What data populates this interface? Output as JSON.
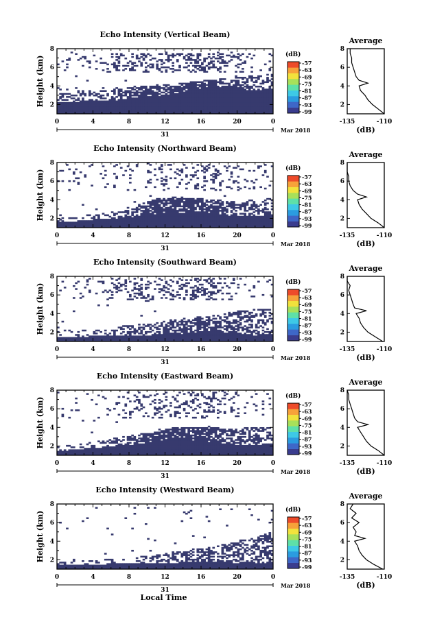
{
  "colors": {
    "echo": "#373a6e",
    "frame": "#000000"
  },
  "colorbar_colors": [
    "#3a3c8e",
    "#3e67c8",
    "#2b9ce0",
    "#3ec9e6",
    "#5ee0a8",
    "#a8e05a",
    "#f2e23c",
    "#f7a23a",
    "#ee4b2a"
  ],
  "colorbar": {
    "unit": "(dB)",
    "ticks": [
      "-57",
      "-63",
      "-69",
      "-75",
      "-81",
      "-87",
      "-93",
      "-99"
    ]
  },
  "time_ticks": [
    "0",
    "4",
    "8",
    "12",
    "16",
    "20",
    "0"
  ],
  "height_ticks": [
    "2",
    "4",
    "6",
    "8"
  ],
  "date_day": "31",
  "date_label": "Mar 2018",
  "xlabel_main": "Local Time",
  "avg_title": "Average",
  "avg_xlabel": "(dB)",
  "avg_x_ticks": [
    "-135",
    "-110"
  ],
  "chart_data": [
    {
      "type": "heatmap",
      "title": "Echo Intensity (Vertical Beam)",
      "xlabel": "",
      "ylabel": "Height (km)",
      "xlim": [
        0,
        24
      ],
      "ylim": [
        1,
        8
      ],
      "z_range": [
        -99,
        -57
      ],
      "solid_top": [
        2.3,
        2.3,
        2.4,
        2.5,
        2.8,
        2.9,
        3.2,
        3.7,
        4.0,
        3.8,
        3.5,
        3.8
      ],
      "broken_top": [
        3.8,
        3.6,
        3.4,
        3.7,
        3.9,
        4.1,
        4.2,
        4.5,
        4.7,
        4.9,
        5.1,
        5.3
      ],
      "fill_density": [
        0.45,
        0.4,
        0.45,
        0.55,
        0.65,
        0.7,
        0.7,
        0.75,
        0.7,
        0.6,
        0.45,
        0.35
      ],
      "upper_band": [
        5.5,
        7.6
      ],
      "upper_density": [
        0.08,
        0.1,
        0.12,
        0.2,
        0.3,
        0.35,
        0.3,
        0.45,
        0.4,
        0.2,
        0.1,
        0.1
      ],
      "avg_profile": {
        "type": "line",
        "xlim": [
          -135,
          -110
        ],
        "ylim": [
          1,
          8
        ],
        "height": [
          1.0,
          1.5,
          2.0,
          2.5,
          3.0,
          3.5,
          4.0,
          4.3,
          4.6,
          5.0,
          5.5,
          6.0,
          6.5,
          7.0,
          7.5,
          8.0
        ],
        "db": [
          -110,
          -114,
          -118,
          -121,
          -123,
          -126,
          -127,
          -121,
          -127,
          -129,
          -130,
          -131,
          -132,
          -132,
          -133,
          -133
        ]
      }
    },
    {
      "type": "heatmap",
      "title": "Echo Intensity (Northward Beam)",
      "xlabel": "",
      "ylabel": "Height (km)",
      "xlim": [
        0,
        24
      ],
      "ylim": [
        1,
        8
      ],
      "z_range": [
        -99,
        -57
      ],
      "solid_top": [
        1.6,
        1.7,
        1.9,
        2.0,
        2.2,
        2.4,
        2.5,
        2.6,
        2.5,
        2.3,
        2.2,
        2.5
      ],
      "broken_top": [
        2.4,
        2.3,
        2.5,
        2.8,
        3.4,
        4.1,
        4.3,
        4.2,
        4.0,
        3.9,
        4.0,
        4.3
      ],
      "fill_density": [
        0.35,
        0.3,
        0.35,
        0.45,
        0.6,
        0.8,
        0.85,
        0.8,
        0.6,
        0.5,
        0.45,
        0.3
      ],
      "upper_band": [
        5.0,
        7.8
      ],
      "upper_density": [
        0.05,
        0.08,
        0.06,
        0.06,
        0.08,
        0.12,
        0.15,
        0.2,
        0.25,
        0.15,
        0.1,
        0.05
      ],
      "avg_profile": {
        "type": "line",
        "xlim": [
          -135,
          -110
        ],
        "ylim": [
          1,
          8
        ],
        "height": [
          1.0,
          1.5,
          2.0,
          2.5,
          3.0,
          3.5,
          4.0,
          4.3,
          4.6,
          5.0,
          5.5,
          6.0,
          6.5,
          7.0,
          7.5,
          8.0
        ],
        "db": [
          -110,
          -114,
          -119,
          -122,
          -125,
          -127,
          -128,
          -122,
          -128,
          -131,
          -133,
          -134,
          -134,
          -135,
          -135,
          -135
        ]
      }
    },
    {
      "type": "heatmap",
      "title": "Echo Intensity (Southward Beam)",
      "xlabel": "",
      "ylabel": "Height (km)",
      "xlim": [
        0,
        24
      ],
      "ylim": [
        1,
        8
      ],
      "z_range": [
        -99,
        -57
      ],
      "solid_top": [
        1.4,
        1.5,
        1.6,
        1.6,
        1.6,
        1.7,
        1.8,
        2.0,
        2.1,
        1.9,
        1.7,
        1.8
      ],
      "broken_top": [
        2.2,
        2.2,
        2.4,
        2.6,
        2.8,
        3.0,
        3.4,
        3.6,
        3.8,
        4.2,
        4.5,
        4.8
      ],
      "fill_density": [
        0.2,
        0.2,
        0.25,
        0.3,
        0.4,
        0.55,
        0.65,
        0.65,
        0.6,
        0.55,
        0.5,
        0.4
      ],
      "upper_band": [
        5.5,
        7.8
      ],
      "upper_density": [
        0.05,
        0.06,
        0.08,
        0.2,
        0.25,
        0.2,
        0.25,
        0.35,
        0.3,
        0.1,
        0.05,
        0.05
      ],
      "avg_profile": {
        "type": "line",
        "xlim": [
          -135,
          -110
        ],
        "ylim": [
          1,
          8
        ],
        "height": [
          1.0,
          1.5,
          2.0,
          2.5,
          3.0,
          3.5,
          4.0,
          4.3,
          4.6,
          5.0,
          5.5,
          6.0,
          6.5,
          7.0,
          7.5,
          8.0
        ],
        "db": [
          -111,
          -116,
          -121,
          -124,
          -126,
          -127,
          -129,
          -122,
          -130,
          -131,
          -132,
          -133,
          -134,
          -133,
          -135,
          -135
        ]
      }
    },
    {
      "type": "heatmap",
      "title": "Echo Intensity (Eastward Beam)",
      "xlabel": "",
      "ylabel": "Height (km)",
      "xlim": [
        0,
        24
      ],
      "ylim": [
        1,
        8
      ],
      "z_range": [
        -99,
        -57
      ],
      "solid_top": [
        1.5,
        1.6,
        1.8,
        2.0,
        2.2,
        2.5,
        2.7,
        2.6,
        2.4,
        2.2,
        2.1,
        2.3
      ],
      "broken_top": [
        2.0,
        2.2,
        2.6,
        2.9,
        3.2,
        3.6,
        4.0,
        4.1,
        4.0,
        3.9,
        4.0,
        4.2
      ],
      "fill_density": [
        0.3,
        0.3,
        0.35,
        0.45,
        0.55,
        0.75,
        0.85,
        0.8,
        0.7,
        0.55,
        0.45,
        0.35
      ],
      "upper_band": [
        5.0,
        7.8
      ],
      "upper_density": [
        0.03,
        0.05,
        0.05,
        0.1,
        0.2,
        0.2,
        0.2,
        0.3,
        0.25,
        0.08,
        0.05,
        0.03
      ],
      "avg_profile": {
        "type": "line",
        "xlim": [
          -135,
          -110
        ],
        "ylim": [
          1,
          8
        ],
        "height": [
          1.0,
          1.5,
          2.0,
          2.5,
          3.0,
          3.5,
          4.0,
          4.3,
          4.6,
          5.0,
          5.5,
          6.0,
          6.5,
          7.0,
          7.5,
          8.0
        ],
        "db": [
          -110,
          -114,
          -119,
          -122,
          -124,
          -126,
          -128,
          -121,
          -128,
          -130,
          -131,
          -132,
          -133,
          -134,
          -134,
          -135
        ]
      }
    },
    {
      "type": "heatmap",
      "title": "Echo Intensity (Westward Beam)",
      "xlabel": "Local Time",
      "ylabel": "Height (km)",
      "xlim": [
        0,
        24
      ],
      "ylim": [
        1,
        8
      ],
      "z_range": [
        -99,
        -57
      ],
      "solid_top": [
        1.4,
        1.4,
        1.5,
        1.6,
        1.6,
        1.7,
        1.7,
        1.8,
        1.8,
        1.7,
        1.6,
        1.7
      ],
      "broken_top": [
        1.8,
        1.9,
        2.0,
        2.1,
        2.3,
        2.5,
        2.9,
        3.2,
        3.5,
        3.9,
        4.5,
        5.0
      ],
      "fill_density": [
        0.2,
        0.2,
        0.2,
        0.25,
        0.3,
        0.4,
        0.5,
        0.55,
        0.55,
        0.5,
        0.45,
        0.4
      ],
      "upper_band": [
        6.0,
        7.8
      ],
      "upper_density": [
        0.01,
        0.02,
        0.02,
        0.03,
        0.03,
        0.02,
        0.02,
        0.02,
        0.02,
        0.02,
        0.02,
        0.02
      ],
      "avg_profile": {
        "type": "line",
        "xlim": [
          -135,
          -110
        ],
        "ylim": [
          1,
          8
        ],
        "height": [
          1.0,
          1.5,
          2.0,
          2.5,
          3.0,
          3.5,
          4.0,
          4.3,
          4.6,
          5.0,
          5.5,
          6.0,
          6.5,
          7.0,
          7.5,
          8.0
        ],
        "db": [
          -111,
          -117,
          -122,
          -125,
          -127,
          -128,
          -130,
          -123,
          -130,
          -129,
          -131,
          -127,
          -132,
          -129,
          -133,
          -131
        ]
      }
    }
  ]
}
